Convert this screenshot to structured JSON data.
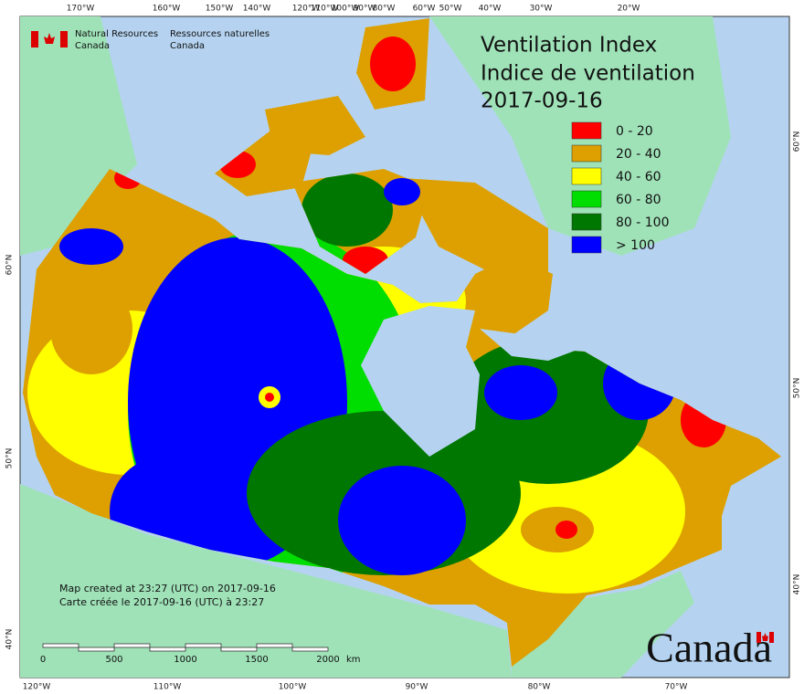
{
  "header": {
    "agency_en": [
      "Natural Resources",
      "Canada"
    ],
    "agency_fr": [
      "Ressources naturelles",
      "Canada"
    ]
  },
  "title": {
    "line1": "Ventilation Index",
    "line2": "Indice de ventilation",
    "date": "2017-09-16"
  },
  "legend": [
    {
      "label": "0 - 20",
      "color": "#ff0000"
    },
    {
      "label": "20 - 40",
      "color": "#dda000"
    },
    {
      "label": "40 - 60",
      "color": "#ffff00"
    },
    {
      "label": "60 - 80",
      "color": "#00dd00"
    },
    {
      "label": "80 - 100",
      "color": "#007700"
    },
    {
      "label": "> 100",
      "color": "#0000ff"
    }
  ],
  "graticule": {
    "top": [
      "170°W",
      "160°W",
      "150°W",
      "140°W",
      "120°W",
      "110°W",
      "100°W",
      "90°W",
      "80°W",
      "60°W",
      "50°W",
      "40°W",
      "30°W",
      "20°W"
    ],
    "bottom": [
      "120°W",
      "110°W",
      "100°W",
      "90°W",
      "80°W",
      "70°W"
    ],
    "left": [
      "60°N",
      "50°N",
      "40°N"
    ],
    "right": [
      "60°N",
      "50°N",
      "40°N"
    ]
  },
  "footer": {
    "created_en": "Map created at 23:27 (UTC) on 2017-09-16",
    "created_fr": "Carte créée le 2017-09-16 (UTC) à 23:27"
  },
  "scale": {
    "ticks": [
      "0",
      "500",
      "1000",
      "1500",
      "2000"
    ],
    "unit": "km"
  },
  "wordmark": "Canada"
}
